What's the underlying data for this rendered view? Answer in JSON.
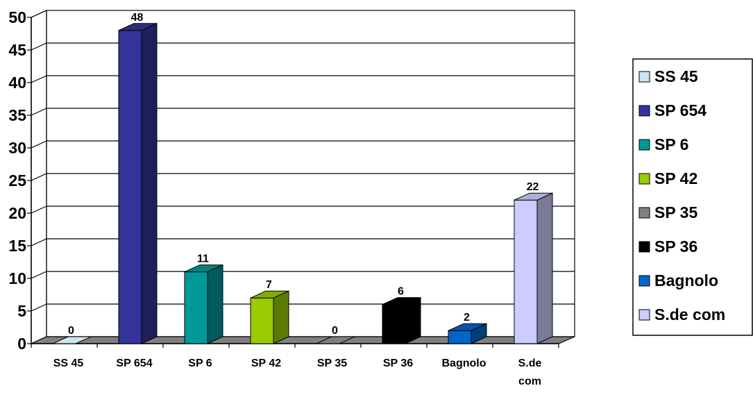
{
  "chart_data": {
    "type": "bar",
    "categories": [
      "SS 45",
      "SP 654",
      "SP 6",
      "SP 42",
      "SP 35",
      "SP 36",
      "Bagnolo",
      "S.de com"
    ],
    "values": [
      0,
      48,
      11,
      7,
      0,
      6,
      2,
      22
    ],
    "ylim": [
      0,
      50
    ],
    "yticks": [
      "0",
      "5",
      "10",
      "15",
      "20",
      "25",
      "30",
      "35",
      "40",
      "45",
      "50"
    ],
    "grid": true,
    "legend_position": "right",
    "legend": [
      "SS 45",
      "SP 654",
      "SP 6",
      "SP 42",
      "SP 35",
      "SP 36",
      "Bagnolo",
      "S.de com"
    ],
    "colors": [
      "#cce6ee",
      "#333399",
      "#009999",
      "#99cc00",
      "#808080",
      "#000000",
      "#0066cc",
      "#ccccff"
    ]
  }
}
